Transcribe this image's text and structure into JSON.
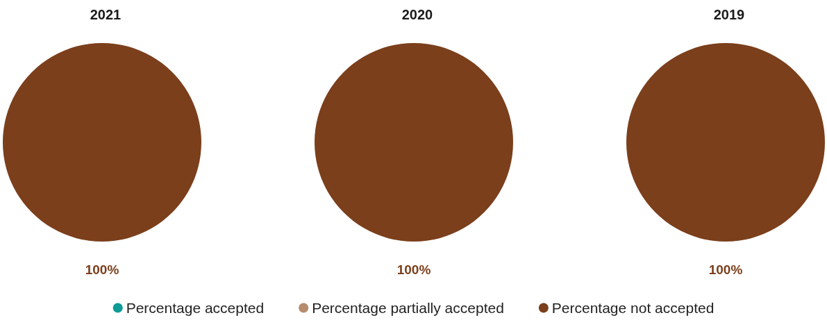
{
  "chart_data": {
    "type": "pie",
    "categories": [
      "Percentage accepted",
      "Percentage partially accepted",
      "Percentage not accepted"
    ],
    "colors": [
      "#0e9a95",
      "#b58c6c",
      "#7b3f1c"
    ],
    "legend": "bottom",
    "series": [
      {
        "name": "2021",
        "values": [
          0,
          0,
          100
        ],
        "value_labels": [
          null,
          null,
          "100%"
        ]
      },
      {
        "name": "2020",
        "values": [
          0,
          0,
          100
        ],
        "value_labels": [
          null,
          null,
          "100%"
        ]
      },
      {
        "name": "2019",
        "values": [
          0,
          0,
          100
        ],
        "value_labels": [
          null,
          null,
          "100%"
        ]
      }
    ]
  }
}
